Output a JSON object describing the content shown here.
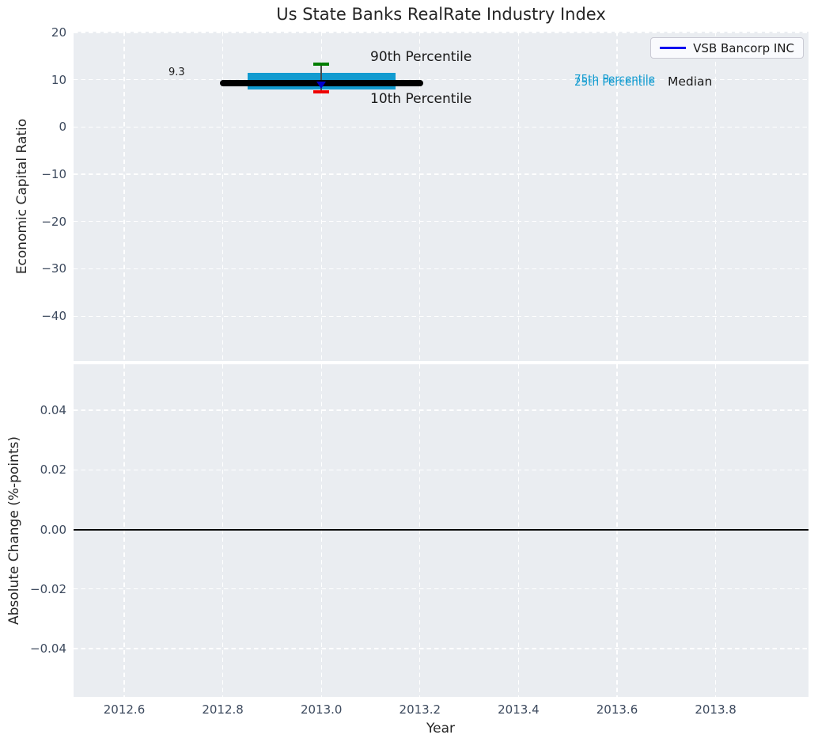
{
  "chart_data": [
    {
      "type": "percentile-summary",
      "subplot": "top",
      "title": "Us State Banks RealRate Industry Index",
      "ylabel": "Economic Capital Ratio",
      "ylim": [
        -49.6,
        20.3
      ],
      "yticks": [
        20,
        10,
        0,
        -10,
        -20,
        -30,
        -40
      ],
      "xlim": [
        2012.5,
        2013.99
      ],
      "grid": true,
      "legend": {
        "label": "VSB Bancorp INC",
        "color": "#0a0af0",
        "position": "upper right"
      },
      "series": {
        "median": {
          "label": "Median",
          "value": 9.3,
          "x_start": 2012.8,
          "x_end": 2013.2,
          "color": "#000000"
        },
        "iqr_band": {
          "labels": [
            "75th Percentile",
            "25th Percentile"
          ],
          "p75": 11.4,
          "p25": 8.0,
          "x_start": 2012.85,
          "x_end": 2013.15,
          "color": "#119bd0"
        },
        "p90": {
          "label": "90th Percentile",
          "value": 13.3,
          "x": 2013.0,
          "color": "#007d00"
        },
        "p10": {
          "label": "10th Percentile",
          "value": 7.4,
          "x": 2013.0,
          "color": "#ee0000"
        },
        "company": {
          "name": "VSB Bancorp INC",
          "x": 2013.0,
          "value": 9.3,
          "marker": "triangle-down",
          "color": "#0000cc"
        }
      },
      "annotations": {
        "median_value_label": "9.3",
        "p90_label": "90th Percentile",
        "p10_label": "10th Percentile",
        "p75_label": "75th Percentile",
        "p25_label": "25th Percentile",
        "median_label": "Median"
      }
    },
    {
      "type": "line",
      "subplot": "bottom",
      "ylabel": "Absolute Change (%-points)",
      "xlabel": "Year",
      "ylim": [
        -0.056,
        0.056
      ],
      "yticks": [
        0.04,
        0.02,
        0,
        -0.02,
        -0.04
      ],
      "xticks": [
        2012.6,
        2012.8,
        2013.0,
        2013.2,
        2013.4,
        2013.6,
        2013.8
      ],
      "zero_line": {
        "y": 0.0,
        "color": "#000000"
      },
      "series": []
    }
  ]
}
